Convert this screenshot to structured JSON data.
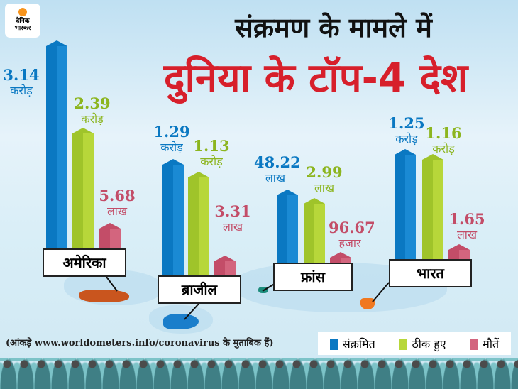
{
  "logo": {
    "line1": "दैनिक",
    "line2": "भास्कर"
  },
  "title_line1": "संक्रमण के मामले में",
  "title_line2": "दुनिया के टॉप-4 देश",
  "source_note": "(आंकड़े www.worldometers.info/coronavirus के मुताबिक हैं)",
  "colors": {
    "infected": "#0a78c2",
    "recovered": "#9fc42a",
    "deaths": "#c34d68",
    "title": "#d71f2b"
  },
  "chart_data": {
    "type": "bar",
    "title": "संक्रमण के मामले में दुनिया के टॉप-4 देश",
    "categories": [
      "अमेरिका",
      "ब्राजील",
      "फ्रांस",
      "भारत"
    ],
    "legend": [
      "संक्रमित",
      "ठीक हुए",
      "मौतें"
    ],
    "legend_placement": "bottom-right",
    "series": [
      {
        "name": "संक्रमित",
        "values": [
          31400000,
          12900000,
          4822000,
          12500000
        ],
        "labels": [
          {
            "v": "3.14",
            "u": "करोड़"
          },
          {
            "v": "1.29",
            "u": "करोड़"
          },
          {
            "v": "48.22",
            "u": "लाख"
          },
          {
            "v": "1.25",
            "u": "करोड़"
          }
        ]
      },
      {
        "name": "ठीक हुए",
        "values": [
          23900000,
          11300000,
          299000,
          11600000
        ],
        "labels": [
          {
            "v": "2.39",
            "u": "करोड़"
          },
          {
            "v": "1.13",
            "u": "करोड़"
          },
          {
            "v": "2.99",
            "u": "लाख"
          },
          {
            "v": "1.16",
            "u": "करोड़"
          }
        ]
      },
      {
        "name": "मौतें",
        "values": [
          568000,
          331000,
          96670,
          165000
        ],
        "labels": [
          {
            "v": "5.68",
            "u": "लाख"
          },
          {
            "v": "3.31",
            "u": "लाख"
          },
          {
            "v": "96.67",
            "u": "हजार"
          },
          {
            "v": "1.65",
            "u": "लाख"
          }
        ]
      }
    ]
  }
}
